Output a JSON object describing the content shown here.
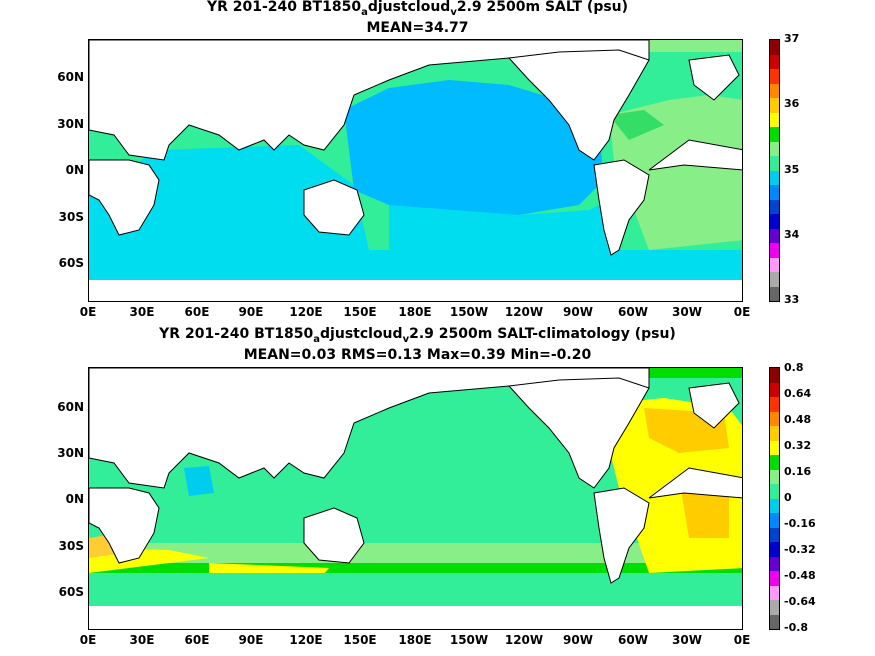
{
  "panel1": {
    "title_prefix": "YR 201-240 BT1850",
    "title_sub1": "a",
    "title_mid": "djustcloud",
    "title_sub2": "v",
    "title_suffix": "2.9 2500m SALT (psu)",
    "stats": "MEAN=34.77",
    "colorbar_labels": [
      "37",
      "36",
      "35",
      "34",
      "33"
    ],
    "colors": [
      "#8b0000",
      "#cc0000",
      "#ff3300",
      "#ff8800",
      "#ffcc00",
      "#ffff00",
      "#00dd00",
      "#88ee88",
      "#33ee99",
      "#00ccee",
      "#0088ff",
      "#0044cc",
      "#0000cc",
      "#6600cc",
      "#ee00ee",
      "#ff99ff",
      "#aaaaaa",
      "#666666"
    ]
  },
  "panel2": {
    "title_prefix": "YR 201-240 BT1850",
    "title_sub1": "a",
    "title_mid": "djustcloud",
    "title_sub2": "v",
    "title_suffix": "2.9 2500m SALT-climatology (psu)",
    "stats": "MEAN=0.03   RMS=0.13   Max=0.39   Min=-0.20",
    "colorbar_labels": [
      "0.8",
      "0.64",
      "0.48",
      "0.32",
      "0.16",
      "0",
      "-0.16",
      "-0.32",
      "-0.48",
      "-0.64",
      "-0.8"
    ],
    "colors": [
      "#8b0000",
      "#cc0000",
      "#ff3300",
      "#ff8800",
      "#ffcc00",
      "#ffff00",
      "#00dd00",
      "#88ee88",
      "#33ee99",
      "#00ccee",
      "#0088ff",
      "#0044cc",
      "#0000cc",
      "#6600cc",
      "#ee00ee",
      "#ff99ff",
      "#aaaaaa",
      "#666666"
    ]
  },
  "lat_labels": [
    "60N",
    "30N",
    "0N",
    "30S",
    "60S"
  ],
  "lon_labels": [
    "0E",
    "30E",
    "60E",
    "90E",
    "120E",
    "150E",
    "180E",
    "150W",
    "120W",
    "90W",
    "60W",
    "30W",
    "0E"
  ]
}
